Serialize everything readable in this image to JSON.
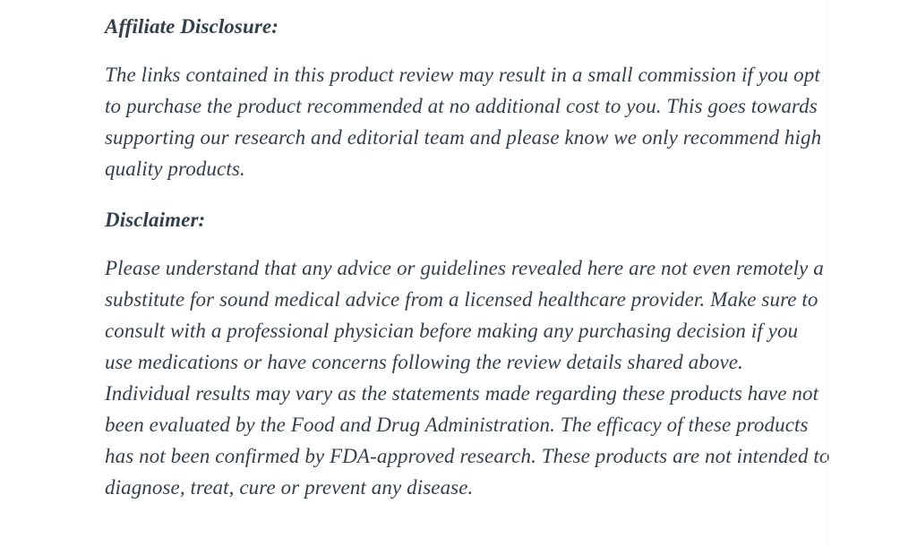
{
  "page": {
    "background_color": "#ffffff",
    "text_color": "#333f49"
  },
  "article": {
    "affiliate": {
      "heading": "Affiliate Disclosure:",
      "body": "The links contained in this product review may result in a small commission if you opt to purchase the product recommended at no additional cost to you. This goes towards supporting our research and editorial team and please know we only recommend high quality products."
    },
    "disclaimer": {
      "heading": "Disclaimer:",
      "body": "Please understand that any advice or guidelines revealed here are not even remotely a substitute for sound medical advice from a licensed healthcare provider. Make sure to consult with a professional physician before making any purchasing decision if you use medications or have concerns following the review details shared above. Individual results may vary as the statements made regarding these products have not been evaluated by the Food and Drug Administration. The efficacy of these products has not been confirmed by FDA-approved research. These products are not intended to diagnose, treat, cure or prevent any disease."
    }
  }
}
